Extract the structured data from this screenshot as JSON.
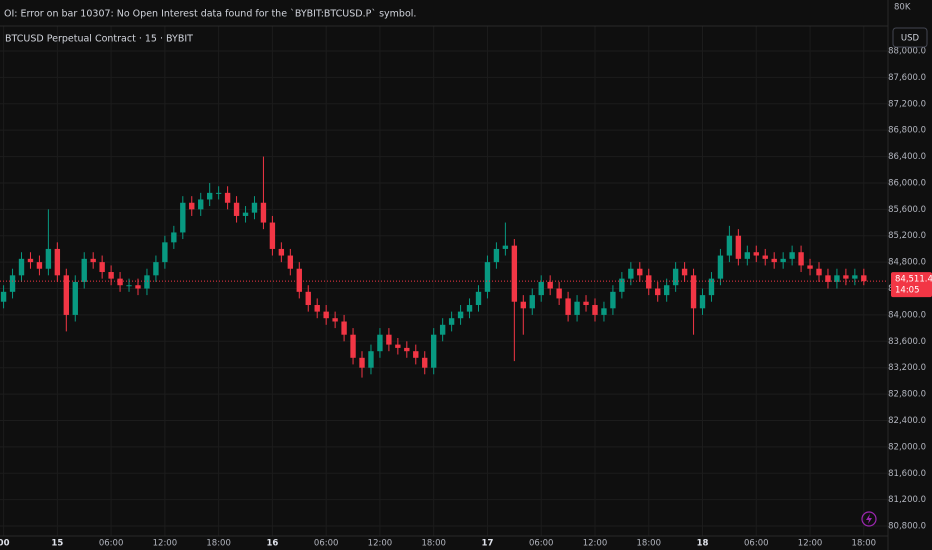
{
  "chart_data": {
    "type": "candlestick",
    "title": "BTCUSD Perpetual Contract · 15 · BYBIT",
    "indicator_error": "OI: Error on bar 10307: No Open Interest data found for the `BYBIT:BTCUSD.P` symbol.",
    "indicator_axis_label": "80K",
    "currency_button": "USD",
    "up_color": "#089981",
    "down_color": "#f23645",
    "x": [
      -6,
      -5,
      -4,
      -3,
      -2,
      -1,
      0,
      1,
      2,
      3,
      4,
      5,
      6,
      7,
      8,
      9,
      10,
      11,
      12,
      13,
      14,
      15,
      16,
      17,
      18,
      19,
      20,
      21,
      22,
      23,
      24,
      25,
      26,
      27,
      28,
      29,
      30,
      31,
      32,
      33,
      34,
      35,
      36,
      37,
      38,
      39,
      40,
      41,
      42,
      43,
      44,
      45,
      46,
      47,
      48,
      49,
      50,
      51,
      52,
      53,
      54,
      55,
      56,
      57,
      58,
      59,
      60,
      61,
      62,
      63,
      64,
      65,
      66,
      67,
      68,
      69,
      70,
      71,
      72,
      73,
      74,
      75,
      76,
      77,
      78,
      79,
      80,
      81,
      82,
      83,
      84,
      85,
      86,
      87,
      88,
      89,
      90
    ],
    "open": [
      84200,
      84350,
      84600,
      84850,
      84800,
      84700,
      85000,
      84600,
      84000,
      84500,
      84850,
      84800,
      84650,
      84550,
      84450,
      84450,
      84400,
      84600,
      84800,
      85100,
      85250,
      85700,
      85600,
      85750,
      85850,
      85850,
      85700,
      85500,
      85550,
      85700,
      85400,
      85000,
      84900,
      84700,
      84350,
      84150,
      84050,
      83950,
      83900,
      83700,
      83350,
      83200,
      83450,
      83700,
      83550,
      83500,
      83450,
      83350,
      83200,
      83700,
      83850,
      83950,
      84050,
      84150,
      84350,
      84800,
      85000,
      85050,
      84200,
      84100,
      84300,
      84500,
      84400,
      84250,
      84000,
      84200,
      84150,
      84000,
      84100,
      84350,
      84550,
      84700,
      84600,
      84400,
      84300,
      84450,
      84700,
      84600,
      84100,
      84300,
      84550,
      84900,
      85200,
      84850,
      84950,
      84900,
      84850,
      84800,
      84850,
      84950,
      84750,
      84700,
      84600,
      84500,
      84600,
      84550,
      84600
    ],
    "high": [
      84450,
      84700,
      84950,
      84950,
      84900,
      85600,
      85100,
      84700,
      84600,
      84950,
      84950,
      84900,
      84750,
      84650,
      84550,
      84550,
      84700,
      84900,
      85200,
      85350,
      85800,
      85800,
      85850,
      86000,
      85950,
      85950,
      85800,
      85650,
      85800,
      86400,
      85500,
      85100,
      85000,
      84800,
      84450,
      84250,
      84150,
      84050,
      84000,
      83800,
      83450,
      83550,
      83800,
      83800,
      83650,
      83600,
      83550,
      83450,
      83800,
      83950,
      84050,
      84150,
      84250,
      84450,
      84900,
      85100,
      85400,
      85150,
      84300,
      84400,
      84600,
      84600,
      84500,
      84350,
      84300,
      84300,
      84250,
      84200,
      84450,
      84650,
      84800,
      84800,
      84700,
      84500,
      84550,
      84800,
      84800,
      84700,
      84400,
      84650,
      85000,
      85350,
      85300,
      85050,
      85050,
      85000,
      84950,
      84950,
      85050,
      85050,
      84850,
      84800,
      84700,
      84700,
      84700,
      84700,
      84700
    ],
    "low": [
      84100,
      84250,
      84500,
      84700,
      84600,
      84600,
      84500,
      83750,
      83900,
      84400,
      84700,
      84550,
      84450,
      84350,
      84350,
      84300,
      84300,
      84500,
      84700,
      85000,
      85150,
      85500,
      85500,
      85650,
      85750,
      85600,
      85400,
      85400,
      85450,
      85300,
      84900,
      84800,
      84600,
      84250,
      84050,
      83950,
      83850,
      83800,
      83600,
      83250,
      83050,
      83100,
      83350,
      83450,
      83400,
      83350,
      83250,
      83100,
      83100,
      83600,
      83750,
      83850,
      83950,
      84050,
      84250,
      84700,
      84900,
      83300,
      83700,
      84000,
      84200,
      84300,
      84150,
      83900,
      83900,
      84050,
      83900,
      83900,
      84000,
      84250,
      84450,
      84500,
      84300,
      84200,
      84200,
      84350,
      84500,
      83700,
      84000,
      84200,
      84450,
      84800,
      84750,
      84750,
      84800,
      84750,
      84700,
      84700,
      84750,
      84650,
      84600,
      84500,
      84400,
      84400,
      84450,
      84450,
      84450
    ],
    "close": [
      84350,
      84600,
      84850,
      84800,
      84700,
      85000,
      84600,
      84000,
      84500,
      84850,
      84800,
      84650,
      84550,
      84450,
      84450,
      84400,
      84600,
      84800,
      85100,
      85250,
      85700,
      85600,
      85750,
      85850,
      85850,
      85700,
      85500,
      85550,
      85700,
      85400,
      85000,
      84900,
      84700,
      84350,
      84150,
      84050,
      83950,
      83900,
      83700,
      83350,
      83200,
      83450,
      83700,
      83550,
      83500,
      83450,
      83350,
      83200,
      83700,
      83850,
      83950,
      84050,
      84150,
      84350,
      84800,
      85000,
      85050,
      84200,
      84100,
      84300,
      84500,
      84400,
      84250,
      84000,
      84200,
      84150,
      84000,
      84100,
      84350,
      84550,
      84700,
      84600,
      84400,
      84300,
      84450,
      84700,
      84600,
      84100,
      84300,
      84550,
      84900,
      85200,
      84850,
      84950,
      84900,
      84850,
      84800,
      84850,
      84950,
      84750,
      84700,
      84600,
      84500,
      84600,
      84550,
      84600,
      84511.4
    ],
    "last_price": {
      "value": 84511.4,
      "label": "84,511.4"
    },
    "countdown": "14:05",
    "xlim": [
      -6.4,
      92.7
    ],
    "xticks": [
      {
        "value": -6,
        "label": "00"
      },
      {
        "value": 0,
        "label": "15"
      },
      {
        "value": 6,
        "label": "06:00"
      },
      {
        "value": 12,
        "label": "12:00"
      },
      {
        "value": 18,
        "label": "18:00"
      },
      {
        "value": 24,
        "label": "16"
      },
      {
        "value": 30,
        "label": "06:00"
      },
      {
        "value": 36,
        "label": "12:00"
      },
      {
        "value": 42,
        "label": "18:00"
      },
      {
        "value": 48,
        "label": "17"
      },
      {
        "value": 54,
        "label": "06:00"
      },
      {
        "value": 60,
        "label": "12:00"
      },
      {
        "value": 66,
        "label": "18:00"
      },
      {
        "value": 72,
        "label": "18"
      },
      {
        "value": 78,
        "label": "06:00"
      },
      {
        "value": 84,
        "label": "12:00"
      },
      {
        "value": 90,
        "label": "18:00"
      }
    ],
    "ylim": [
      80649,
      88379
    ],
    "yticks": [
      {
        "value": 88000,
        "label": "88,000.0"
      },
      {
        "value": 87600,
        "label": "87,600.0"
      },
      {
        "value": 87200,
        "label": "87,200.0"
      },
      {
        "value": 86800,
        "label": "86,800.0"
      },
      {
        "value": 86400,
        "label": "86,400.0"
      },
      {
        "value": 86000,
        "label": "86,000.0"
      },
      {
        "value": 85600,
        "label": "85,600.0"
      },
      {
        "value": 85200,
        "label": "85,200.0"
      },
      {
        "value": 84800,
        "label": "84,800.0"
      },
      {
        "value": 84400,
        "label": "84,400.0"
      },
      {
        "value": 84000,
        "label": "84,000.0"
      },
      {
        "value": 83600,
        "label": "83,600.0"
      },
      {
        "value": 83200,
        "label": "83,200.0"
      },
      {
        "value": 82800,
        "label": "82,800.0"
      },
      {
        "value": 82400,
        "label": "82,400.0"
      },
      {
        "value": 82000,
        "label": "82,000.0"
      },
      {
        "value": 81600,
        "label": "81,600.0"
      },
      {
        "value": 81200,
        "label": "81,200.0"
      },
      {
        "value": 80800,
        "label": "80,800.0"
      }
    ],
    "grid": true
  }
}
